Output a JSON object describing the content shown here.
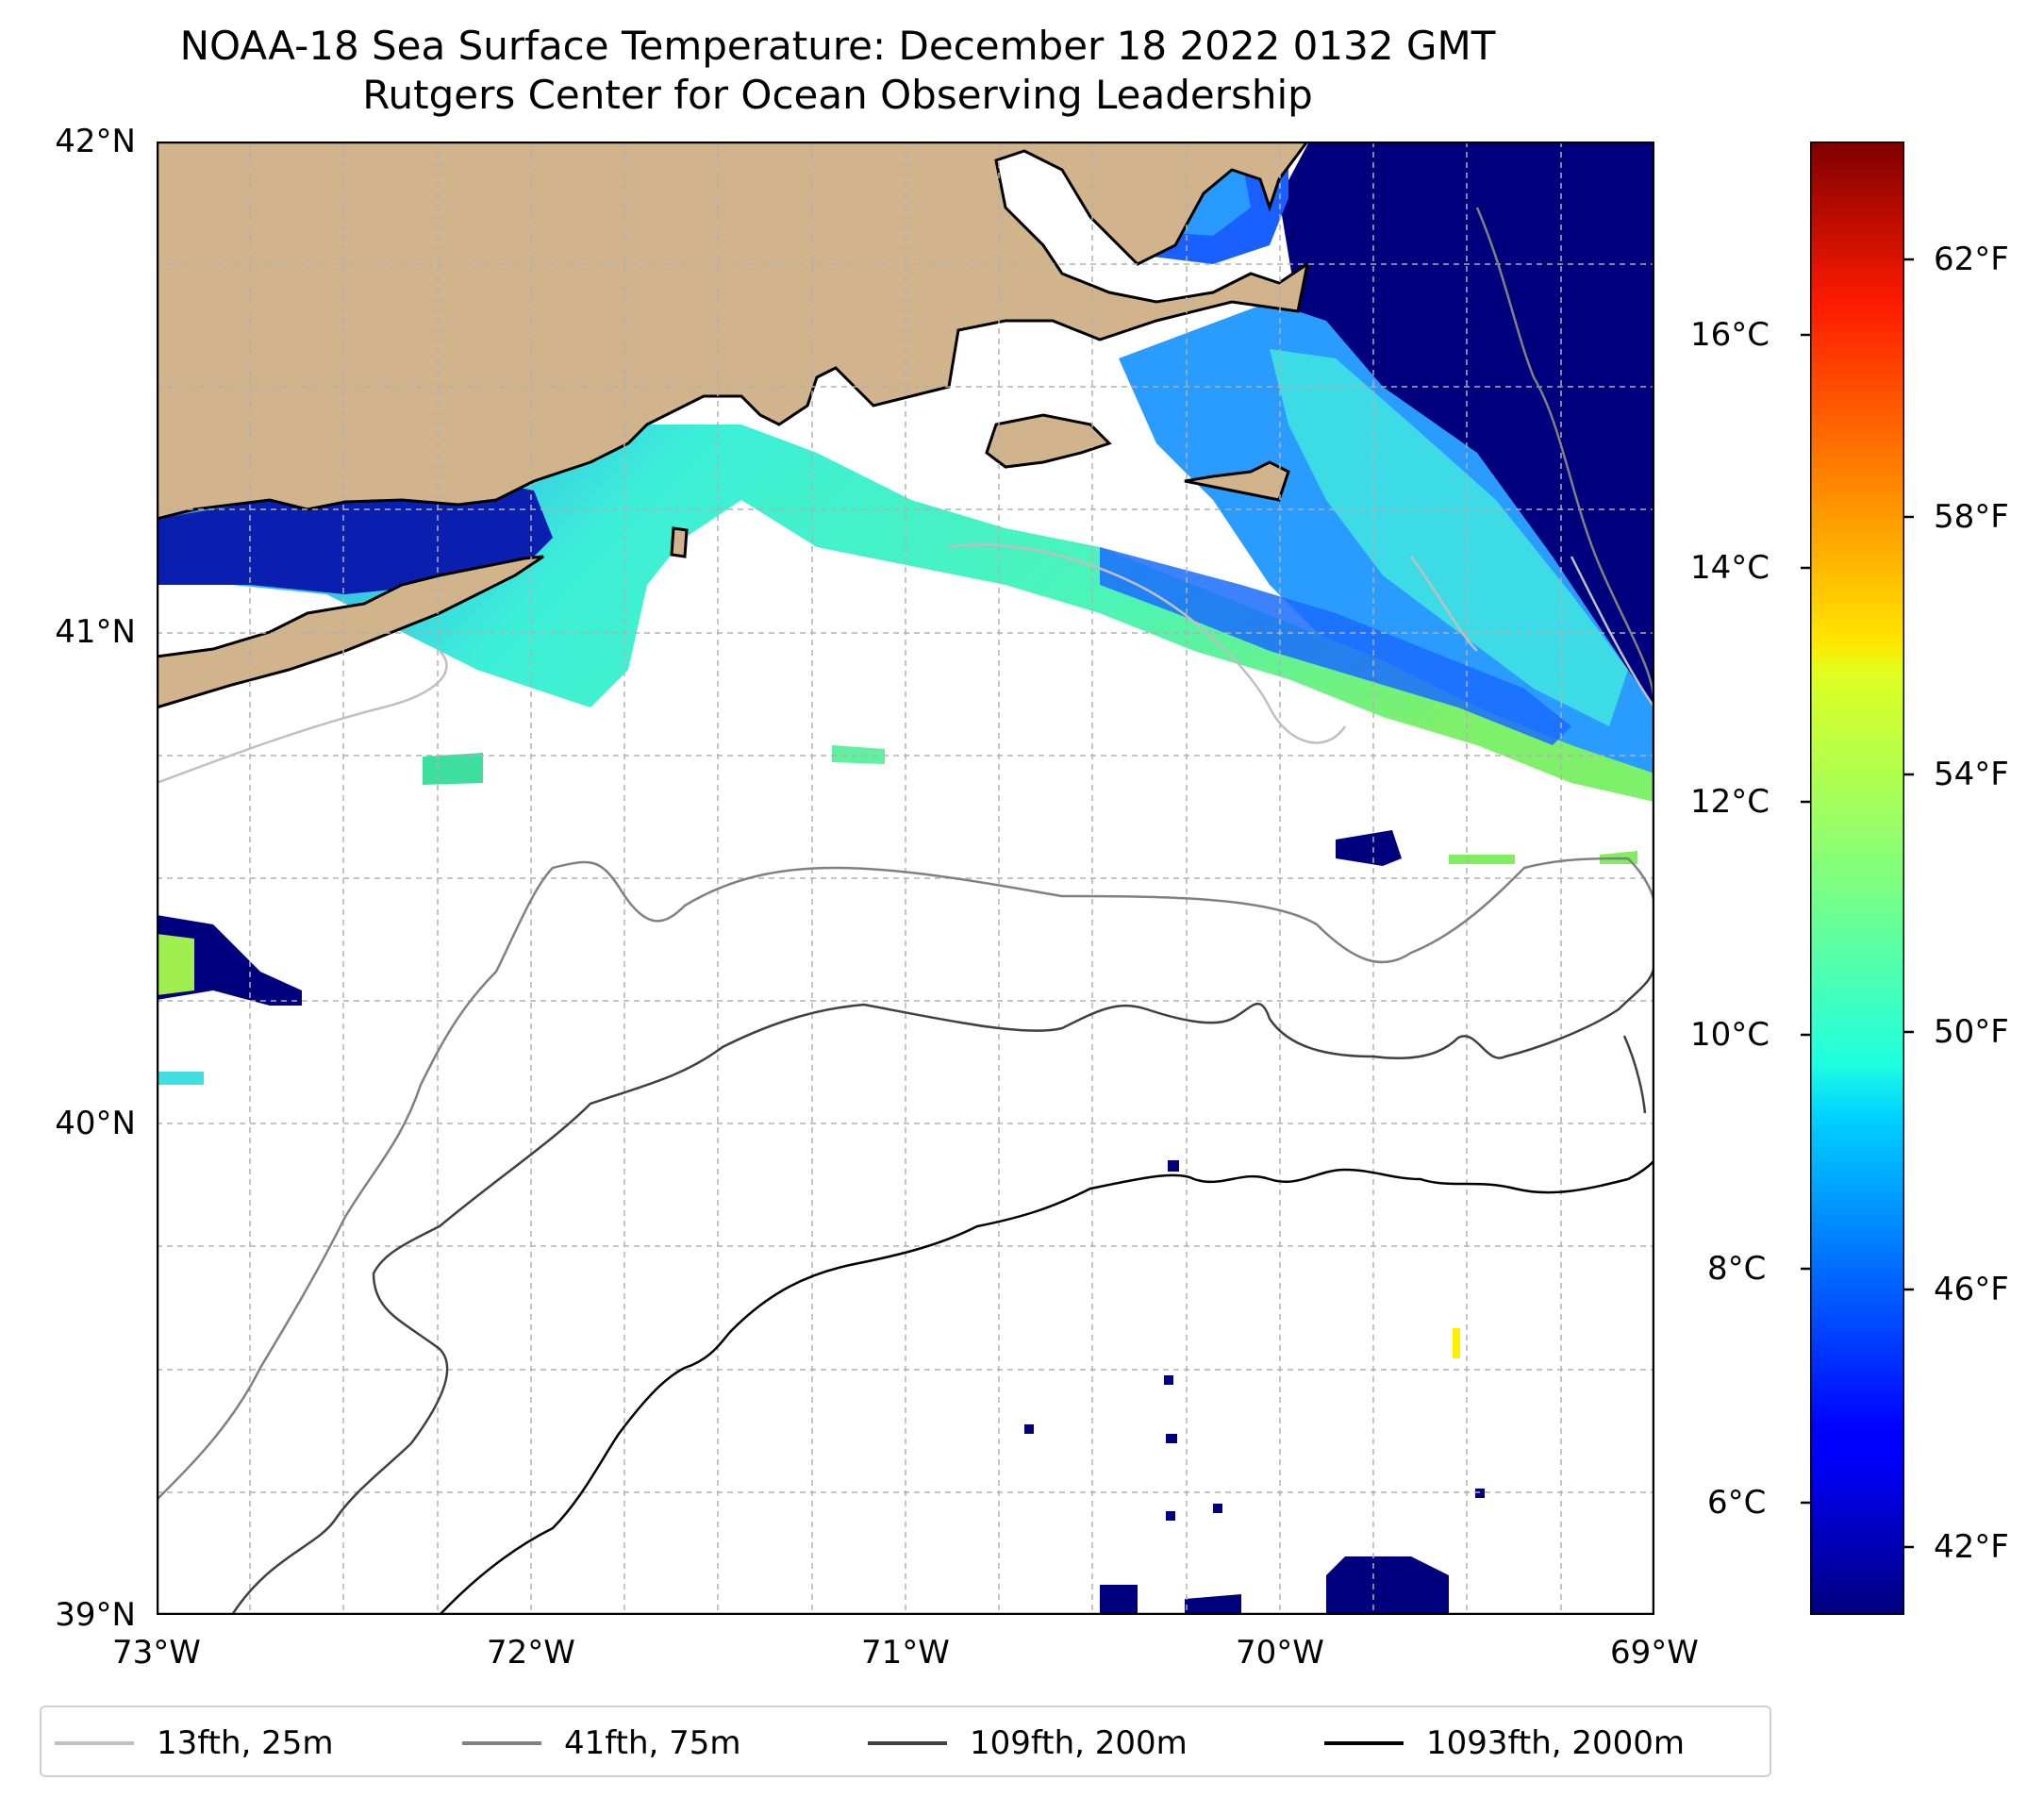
{
  "title": "NOAA-18 Sea Surface Temperature: December 18 2022 0132 GMT",
  "subtitle": "Rutgers Center for Ocean Observing Leadership",
  "map": {
    "lat_range": [
      39,
      42
    ],
    "lon_range": [
      -73,
      -69
    ],
    "lat_ticks": [
      "42°N",
      "41°N",
      "40°N",
      "39°N"
    ],
    "lon_ticks": [
      "73°W",
      "72°W",
      "71°W",
      "70°W",
      "69°W"
    ],
    "gridlines": true,
    "land_color": "#d2b48c",
    "colormap": "jet"
  },
  "colorbar": {
    "celsius_ticks": [
      "16°C",
      "14°C",
      "12°C",
      "10°C",
      "8°C",
      "6°C"
    ],
    "fahrenheit_ticks": [
      "62°F",
      "58°F",
      "54°F",
      "50°F",
      "46°F",
      "42°F"
    ],
    "colormap": "jet",
    "range_f": [
      41,
      64
    ]
  },
  "legend": {
    "placement": "bottom",
    "items": [
      {
        "label": "13fth, 25m",
        "color": "#c0c0c0"
      },
      {
        "label": "41fth, 75m",
        "color": "#808080"
      },
      {
        "label": "109fth, 200m",
        "color": "#404040"
      },
      {
        "label": "1093fth, 2000m",
        "color": "#000000"
      }
    ]
  }
}
